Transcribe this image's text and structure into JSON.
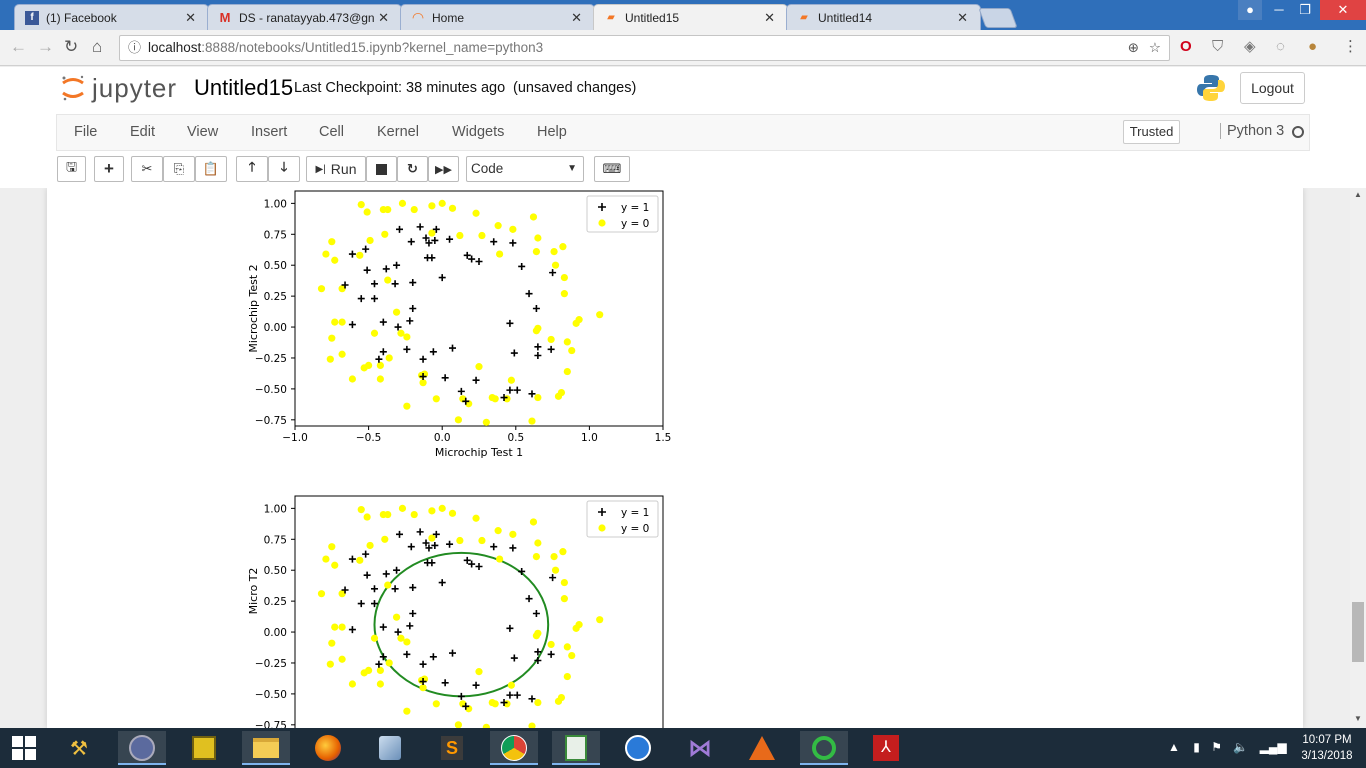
{
  "browser": {
    "tabs": [
      {
        "title": "(1) Facebook",
        "icon": "facebook-icon",
        "active": false
      },
      {
        "title": "DS - ranatayyab.473@gn",
        "icon": "gmail-icon",
        "active": false
      },
      {
        "title": "Home",
        "icon": "jupyter-icon",
        "active": false
      },
      {
        "title": "Untitled15",
        "icon": "notebook-icon",
        "active": true
      },
      {
        "title": "Untitled14",
        "icon": "notebook-icon",
        "active": false
      }
    ],
    "url_host": "localhost",
    "url_rest": ":8888/notebooks/Untitled15.ipynb?kernel_name=python3"
  },
  "jupyter": {
    "logo_text": "jupyter",
    "notebook_name": "Untitled15",
    "checkpoint": "Last Checkpoint: 38 minutes ago",
    "save_status": "(unsaved changes)",
    "logout": "Logout",
    "menu": [
      "File",
      "Edit",
      "View",
      "Insert",
      "Cell",
      "Kernel",
      "Widgets",
      "Help"
    ],
    "trusted": "Trusted",
    "kernel": "Python 3",
    "toolbar": {
      "run": "Run",
      "cell_type": "Code"
    }
  },
  "chart_data": [
    {
      "type": "scatter",
      "xlabel": "Microchip Test 1",
      "ylabel": "Microchip Test 2",
      "xlim": [
        -1.0,
        1.5
      ],
      "ylim": [
        -0.8,
        1.1
      ],
      "xticks": [
        "−1.0",
        "−0.5",
        "0.0",
        "0.5",
        "1.0",
        "1.5"
      ],
      "yticks": [
        "1.00",
        "0.75",
        "0.50",
        "0.25",
        "0.00",
        "−0.25",
        "−0.50",
        "−0.75"
      ],
      "legend": "top-right",
      "series": [
        {
          "name": "y = 1",
          "marker": "+",
          "color": "#000000",
          "points": [
            [
              -0.09,
              0.68
            ],
            [
              -0.21,
              0.69
            ],
            [
              -0.31,
              0.5
            ],
            [
              -0.38,
              0.47
            ],
            [
              -0.51,
              0.46
            ],
            [
              -0.52,
              0.63
            ],
            [
              -0.61,
              0.59
            ],
            [
              -0.66,
              0.34
            ],
            [
              -0.61,
              0.02
            ],
            [
              -0.4,
              0.04
            ],
            [
              -0.3,
              0.0
            ],
            [
              -0.24,
              -0.18
            ],
            [
              -0.4,
              -0.2
            ],
            [
              -0.43,
              -0.26
            ],
            [
              -0.13,
              -0.26
            ],
            [
              -0.06,
              -0.2
            ],
            [
              0.07,
              -0.17
            ],
            [
              0.02,
              -0.41
            ],
            [
              -0.13,
              -0.4
            ],
            [
              0.13,
              -0.52
            ],
            [
              0.16,
              -0.6
            ],
            [
              0.23,
              -0.43
            ],
            [
              0.42,
              -0.57
            ],
            [
              0.46,
              -0.51
            ],
            [
              0.51,
              -0.51
            ],
            [
              0.61,
              -0.54
            ],
            [
              0.49,
              -0.21
            ],
            [
              0.65,
              -0.16
            ],
            [
              0.65,
              -0.23
            ],
            [
              0.74,
              -0.18
            ],
            [
              0.46,
              0.03
            ],
            [
              0.64,
              0.15
            ],
            [
              0.59,
              0.27
            ],
            [
              0.75,
              0.44
            ],
            [
              0.54,
              0.49
            ],
            [
              0.48,
              0.68
            ],
            [
              0.35,
              0.69
            ],
            [
              0.25,
              0.53
            ],
            [
              0.17,
              0.58
            ],
            [
              0.2,
              0.55
            ],
            [
              0.05,
              0.71
            ],
            [
              0.0,
              0.4
            ],
            [
              -0.1,
              0.56
            ],
            [
              -0.07,
              0.56
            ],
            [
              -0.05,
              0.7
            ],
            [
              -0.04,
              0.79
            ],
            [
              -0.15,
              0.81
            ],
            [
              -0.29,
              0.79
            ],
            [
              -0.11,
              0.72
            ],
            [
              -0.2,
              0.15
            ],
            [
              -0.32,
              0.35
            ],
            [
              -0.2,
              0.36
            ],
            [
              -0.55,
              0.23
            ],
            [
              -0.46,
              0.23
            ],
            [
              -0.22,
              0.05
            ],
            [
              -0.46,
              0.35
            ]
          ]
        },
        {
          "name": "y = 0",
          "marker": "o",
          "color": "#ffff00",
          "points": [
            [
              -0.75,
              0.69
            ],
            [
              -0.73,
              0.54
            ],
            [
              -0.68,
              0.31
            ],
            [
              -0.82,
              0.31
            ],
            [
              -0.73,
              0.04
            ],
            [
              -0.75,
              -0.09
            ],
            [
              -0.68,
              -0.22
            ],
            [
              -0.76,
              -0.26
            ],
            [
              -0.61,
              -0.42
            ],
            [
              -0.5,
              -0.31
            ],
            [
              -0.42,
              -0.42
            ],
            [
              -0.42,
              -0.31
            ],
            [
              -0.46,
              -0.05
            ],
            [
              -0.36,
              -0.25
            ],
            [
              -0.24,
              -0.08
            ],
            [
              -0.24,
              -0.64
            ],
            [
              -0.14,
              -0.39
            ],
            [
              -0.13,
              -0.45
            ],
            [
              -0.04,
              -0.58
            ],
            [
              0.11,
              -0.75
            ],
            [
              0.14,
              -0.58
            ],
            [
              0.18,
              -0.62
            ],
            [
              0.3,
              -0.77
            ],
            [
              0.36,
              -0.58
            ],
            [
              0.47,
              -0.43
            ],
            [
              0.44,
              -0.58
            ],
            [
              0.61,
              -0.76
            ],
            [
              0.65,
              -0.57
            ],
            [
              0.79,
              -0.56
            ],
            [
              0.81,
              -0.53
            ],
            [
              0.85,
              -0.36
            ],
            [
              0.88,
              -0.19
            ],
            [
              0.85,
              -0.12
            ],
            [
              0.93,
              0.06
            ],
            [
              0.91,
              0.03
            ],
            [
              1.07,
              0.1
            ],
            [
              0.83,
              0.27
            ],
            [
              0.83,
              0.4
            ],
            [
              0.77,
              0.5
            ],
            [
              0.82,
              0.65
            ],
            [
              0.64,
              0.61
            ],
            [
              0.65,
              0.72
            ],
            [
              0.62,
              0.89
            ],
            [
              0.48,
              0.79
            ],
            [
              0.38,
              0.82
            ],
            [
              0.27,
              0.74
            ],
            [
              0.23,
              0.92
            ],
            [
              0.07,
              0.96
            ],
            [
              0.12,
              0.74
            ],
            [
              0.0,
              1.0
            ],
            [
              -0.07,
              0.98
            ],
            [
              -0.07,
              0.76
            ],
            [
              -0.19,
              0.95
            ],
            [
              -0.27,
              1.0
            ],
            [
              -0.37,
              0.95
            ],
            [
              -0.39,
              0.75
            ],
            [
              -0.4,
              0.95
            ],
            [
              -0.51,
              0.93
            ],
            [
              -0.49,
              0.7
            ],
            [
              -0.56,
              0.58
            ],
            [
              -0.37,
              0.38
            ],
            [
              -0.31,
              0.12
            ],
            [
              -0.28,
              -0.05
            ],
            [
              -0.12,
              -0.38
            ],
            [
              0.25,
              -0.32
            ],
            [
              0.34,
              -0.57
            ],
            [
              0.39,
              0.59
            ],
            [
              0.64,
              -0.03
            ],
            [
              0.65,
              -0.01
            ],
            [
              0.74,
              -0.1
            ],
            [
              0.76,
              0.61
            ],
            [
              -0.02,
              1.1
            ],
            [
              -0.55,
              0.99
            ],
            [
              -0.79,
              0.59
            ],
            [
              -0.53,
              -0.33
            ],
            [
              -0.68,
              0.04
            ]
          ]
        }
      ]
    },
    {
      "type": "scatter",
      "xlabel": "",
      "ylabel": "Micro T2",
      "xlim": [
        -1.0,
        1.5
      ],
      "ylim": [
        -0.8,
        1.1
      ],
      "yticks": [
        "1.00",
        "0.75",
        "0.50",
        "0.25",
        "0.00",
        "−0.25",
        "−0.50",
        "−0.75"
      ],
      "legend": "top-right",
      "boundary": {
        "color": "#228b22",
        "center": [
          0.13,
          0.06
        ],
        "radius_x": 0.59,
        "radius_y": 0.58
      },
      "series": [
        {
          "name": "y = 1",
          "marker": "+",
          "color": "#000000"
        },
        {
          "name": "y = 0",
          "marker": "o",
          "color": "#ffff00"
        }
      ]
    }
  ],
  "taskbar": {
    "time": "10:07 PM",
    "date": "3/13/2018",
    "apps": [
      "start-icon",
      "tools-icon",
      "app-icon",
      "folder-tool-icon",
      "file-explorer-icon",
      "firefox-icon",
      "box-icon",
      "sublime-icon",
      "chrome-icon",
      "editor-icon",
      "network-icon",
      "visual-studio-icon",
      "matlab-icon",
      "circle-app-icon",
      "acrobat-icon"
    ]
  }
}
